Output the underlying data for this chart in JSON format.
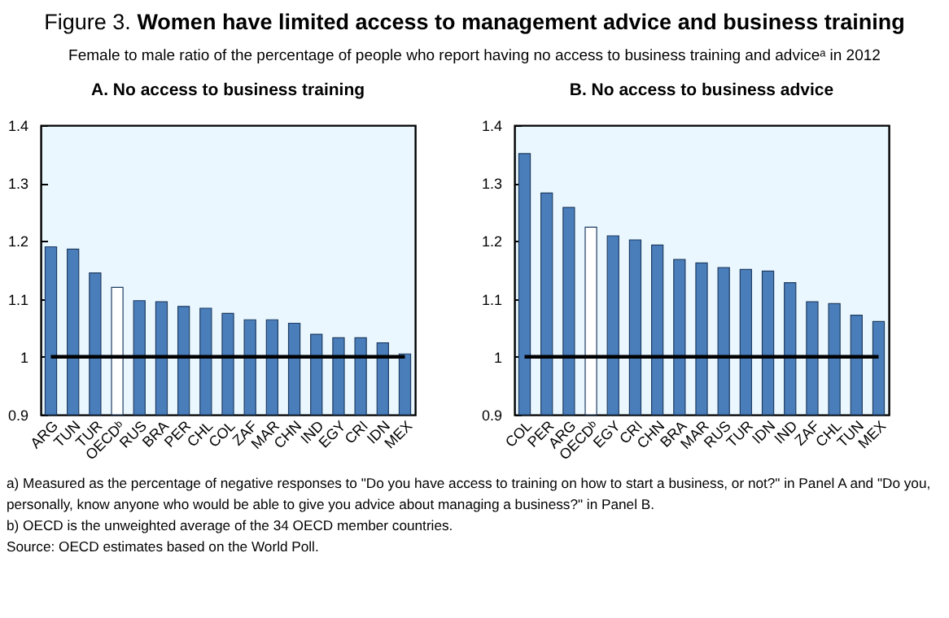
{
  "chart_data": [
    {
      "type": "other",
      "title": "Figure 3. Women have limited access to management advice and business training",
      "subtitle": "Female to male ratio of the percentage of people who report having no access to business training and adviceᵃ in 2012"
    },
    {
      "type": "bar",
      "title": "A. No access to business training",
      "categories": [
        "ARG",
        "TUN",
        "TUR",
        "OECDᵇ",
        "RUS",
        "BRA",
        "PER",
        "CHL",
        "COL",
        "ZAF",
        "MAR",
        "CHN",
        "IND",
        "EGY",
        "CRI",
        "IDN",
        "MEX"
      ],
      "values": [
        1.19,
        1.186,
        1.145,
        1.12,
        1.097,
        1.095,
        1.087,
        1.084,
        1.075,
        1.064,
        1.064,
        1.058,
        1.039,
        1.033,
        1.033,
        1.024,
        1.005
      ],
      "colors": [
        "#4a7ebb",
        "#4a7ebb",
        "#4a7ebb",
        "#ffffff",
        "#4a7ebb",
        "#4a7ebb",
        "#4a7ebb",
        "#4a7ebb",
        "#4a7ebb",
        "#4a7ebb",
        "#4a7ebb",
        "#4a7ebb",
        "#4a7ebb",
        "#4a7ebb",
        "#4a7ebb",
        "#4a7ebb",
        "#4a7ebb"
      ],
      "ylim": [
        0.9,
        1.4
      ],
      "yticks": [
        0.9,
        1,
        1.1,
        1.2,
        1.3,
        1.4
      ],
      "ref_lines": [
        {
          "axis": "y",
          "value": 1,
          "color": "#000000"
        }
      ]
    },
    {
      "type": "bar",
      "title": "B. No access to business advice",
      "categories": [
        "COL",
        "PER",
        "ARG",
        "OECDᵇ",
        "EGY",
        "CRI",
        "CHN",
        "BRA",
        "MAR",
        "RUS",
        "TUR",
        "IDN",
        "IND",
        "ZAF",
        "CHL",
        "TUN",
        "MEX"
      ],
      "values": [
        1.351,
        1.283,
        1.258,
        1.224,
        1.209,
        1.202,
        1.193,
        1.168,
        1.162,
        1.154,
        1.151,
        1.148,
        1.128,
        1.095,
        1.092,
        1.072,
        1.061
      ],
      "colors": [
        "#4a7ebb",
        "#4a7ebb",
        "#4a7ebb",
        "#ffffff",
        "#4a7ebb",
        "#4a7ebb",
        "#4a7ebb",
        "#4a7ebb",
        "#4a7ebb",
        "#4a7ebb",
        "#4a7ebb",
        "#4a7ebb",
        "#4a7ebb",
        "#4a7ebb",
        "#4a7ebb",
        "#4a7ebb",
        "#4a7ebb"
      ],
      "ylim": [
        0.9,
        1.4
      ],
      "yticks": [
        0.9,
        1,
        1.1,
        1.2,
        1.3,
        1.4
      ],
      "ref_lines": [
        {
          "axis": "y",
          "value": 1,
          "color": "#000000"
        }
      ]
    },
    {
      "type": "other",
      "annotations": [
        "a) Measured as the percentage of negative responses to \"Do you have access to training on how to start a business, or not?\" in Panel A and \"Do you, personally, know anyone who would be able to give you advice about managing a business?\" in Panel B.",
        "b) OECD is the unweighted average of the 34 OECD member countries.",
        "Source: OECD estimates based on the World Poll."
      ]
    }
  ]
}
